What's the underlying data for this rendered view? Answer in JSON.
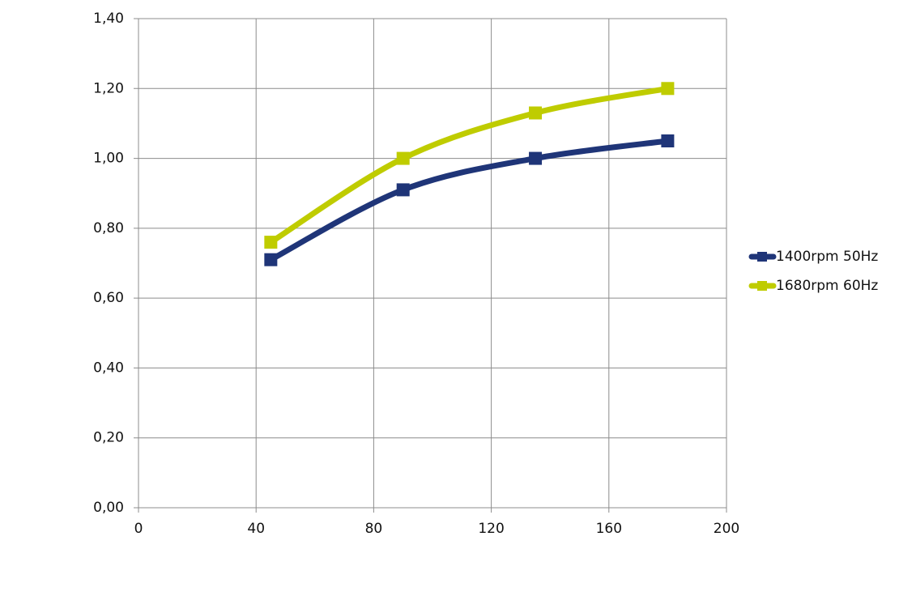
{
  "chart_data": {
    "type": "line",
    "x": [
      45,
      90,
      135,
      180
    ],
    "series": [
      {
        "name": "1400rpm  50Hz",
        "color": "#1f3578",
        "values": [
          0.71,
          0.91,
          1.0,
          1.05
        ]
      },
      {
        "name": "1680rpm 60Hz",
        "color": "#bfcc00",
        "values": [
          0.76,
          1.0,
          1.13,
          1.2
        ]
      }
    ],
    "xlim": [
      0,
      200
    ],
    "xticks": [
      0,
      40,
      80,
      120,
      160,
      200
    ],
    "ylim": [
      0,
      1.4
    ],
    "yticks": [
      {
        "value": 0,
        "label": "0,00"
      },
      {
        "value": 0.2,
        "label": "0,20"
      },
      {
        "value": 0.4,
        "label": "0,40"
      },
      {
        "value": 0.6,
        "label": "0,60"
      },
      {
        "value": 0.8,
        "label": "0,80"
      },
      {
        "value": 1.0,
        "label": "1,00"
      },
      {
        "value": 1.2,
        "label": "1,20"
      },
      {
        "value": 1.4,
        "label": "1,40"
      }
    ],
    "grid": true,
    "legend": "right"
  }
}
